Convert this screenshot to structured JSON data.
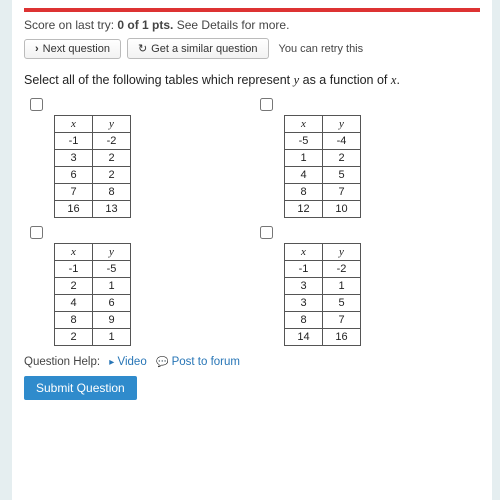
{
  "header": {
    "accent_color": "#d33",
    "score_prefix": "Score on last try: ",
    "score_bold": "0 of 1 pts.",
    "score_suffix": " See Details for more.",
    "next_label": "Next question",
    "similar_label": "Get a similar question",
    "retry_text": "You can retry this"
  },
  "prompt": {
    "before": "Select all of the following tables which represent ",
    "var_y": "y",
    "mid": " as a function of ",
    "var_x": "x",
    "after": "."
  },
  "tables": {
    "col_x": "x",
    "col_y": "y",
    "t1": [
      [
        -1,
        -2
      ],
      [
        3,
        2
      ],
      [
        6,
        2
      ],
      [
        7,
        8
      ],
      [
        16,
        13
      ]
    ],
    "t2": [
      [
        -5,
        -4
      ],
      [
        1,
        2
      ],
      [
        4,
        5
      ],
      [
        8,
        7
      ],
      [
        12,
        10
      ]
    ],
    "t3": [
      [
        -1,
        -5
      ],
      [
        2,
        1
      ],
      [
        4,
        6
      ],
      [
        8,
        9
      ],
      [
        2,
        1
      ]
    ],
    "t4": [
      [
        -1,
        -2
      ],
      [
        3,
        1
      ],
      [
        3,
        5
      ],
      [
        8,
        7
      ],
      [
        14,
        16
      ]
    ]
  },
  "help": {
    "label": "Question Help:",
    "video": "Video",
    "forum": "Post to forum"
  },
  "submit_label": "Submit Question",
  "style": {
    "table_border": "#555",
    "link_color": "#2775b6",
    "submit_bg": "#2f8bcc",
    "page_bg": "#e5eef0"
  }
}
